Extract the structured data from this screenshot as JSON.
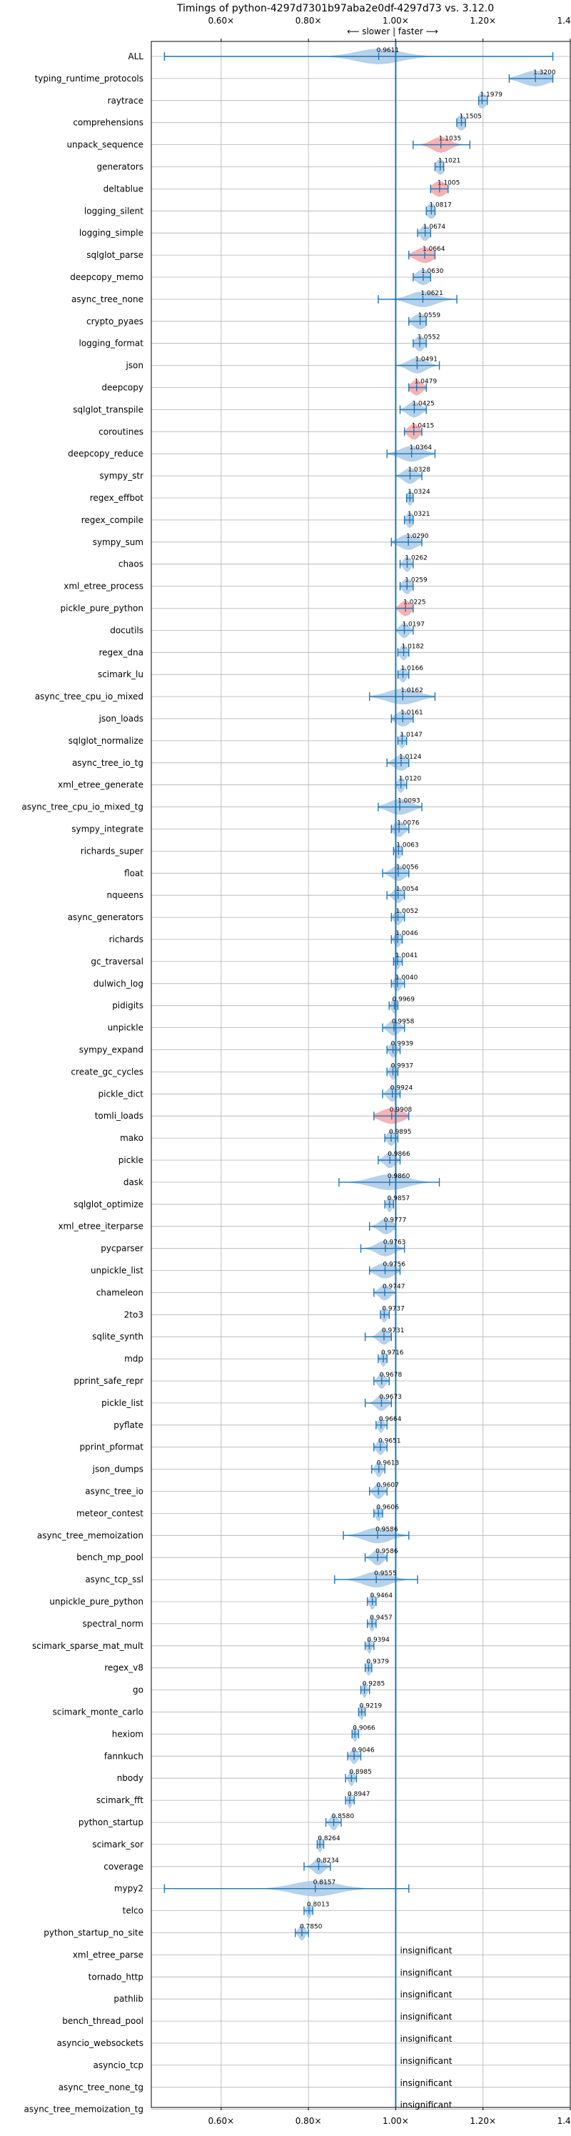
{
  "chart_data": {
    "type": "violin",
    "title": "Timings of python-4297d7301b97aba2e0df-4297d73 vs. 3.12.0",
    "subtitle": "⟵ slower | faster ⟶",
    "xlim": [
      0.44,
      1.4
    ],
    "xticks": [
      0.6,
      0.8,
      1.0,
      1.2,
      1.4
    ],
    "xtick_labels": [
      "0.60×",
      "0.80×",
      "1.00×",
      "1.20×",
      "1.40×"
    ],
    "reference_line": 1.0,
    "grid": true,
    "colors": {
      "violin": "#a9c9e6",
      "line": "#1f77b4",
      "highlight": "#f4a5a8",
      "ref": "#1f77b4",
      "grid": "#b0b0b0"
    },
    "rows": [
      {
        "name": "ALL",
        "value": 0.9611,
        "label": "0.9611",
        "min": 0.47,
        "max": 1.36,
        "spread": 0.05
      },
      {
        "name": "typing_runtime_protocols",
        "value": 1.32,
        "label": "1.3200",
        "min": 1.26,
        "max": 1.36,
        "spread": 0.03
      },
      {
        "name": "raytrace",
        "value": 1.1979,
        "label": "1.1979",
        "min": 1.19,
        "max": 1.21,
        "spread": 0.01
      },
      {
        "name": "comprehensions",
        "value": 1.1505,
        "label": "1.1505",
        "min": 1.14,
        "max": 1.16,
        "spread": 0.01
      },
      {
        "name": "unpack_sequence",
        "value": 1.1035,
        "label": "1.1035",
        "min": 1.04,
        "max": 1.17,
        "spread": 0.02,
        "highlight": true
      },
      {
        "name": "generators",
        "value": 1.1021,
        "label": "1.1021",
        "min": 1.09,
        "max": 1.11,
        "spread": 0.01
      },
      {
        "name": "deltablue",
        "value": 1.1005,
        "label": "1.1005",
        "min": 1.08,
        "max": 1.12,
        "spread": 0.015,
        "highlight": true
      },
      {
        "name": "logging_silent",
        "value": 1.0817,
        "label": "1.0817",
        "min": 1.07,
        "max": 1.09,
        "spread": 0.01
      },
      {
        "name": "logging_simple",
        "value": 1.0674,
        "label": "1.0674",
        "min": 1.05,
        "max": 1.08,
        "spread": 0.01
      },
      {
        "name": "sqlglot_parse",
        "value": 1.0664,
        "label": "1.0664",
        "min": 1.03,
        "max": 1.09,
        "spread": 0.02,
        "highlight": true
      },
      {
        "name": "deepcopy_memo",
        "value": 1.063,
        "label": "1.0630",
        "min": 1.04,
        "max": 1.08,
        "spread": 0.015
      },
      {
        "name": "async_tree_none",
        "value": 1.0621,
        "label": "1.0621",
        "min": 0.96,
        "max": 1.14,
        "spread": 0.03
      },
      {
        "name": "crypto_pyaes",
        "value": 1.0559,
        "label": "1.0559",
        "min": 1.03,
        "max": 1.07,
        "spread": 0.015
      },
      {
        "name": "logging_format",
        "value": 1.0552,
        "label": "1.0552",
        "min": 1.04,
        "max": 1.07,
        "spread": 0.01
      },
      {
        "name": "json",
        "value": 1.0491,
        "label": "1.0491",
        "min": 1.0,
        "max": 1.1,
        "spread": 0.02
      },
      {
        "name": "deepcopy",
        "value": 1.0479,
        "label": "1.0479",
        "min": 1.03,
        "max": 1.07,
        "spread": 0.012,
        "highlight": true
      },
      {
        "name": "sqlglot_transpile",
        "value": 1.0425,
        "label": "1.0425",
        "min": 1.01,
        "max": 1.07,
        "spread": 0.015
      },
      {
        "name": "coroutines",
        "value": 1.0415,
        "label": "1.0415",
        "min": 1.02,
        "max": 1.06,
        "spread": 0.012,
        "highlight": true
      },
      {
        "name": "deepcopy_reduce",
        "value": 1.0364,
        "label": "1.0364",
        "min": 0.98,
        "max": 1.09,
        "spread": 0.025
      },
      {
        "name": "sympy_str",
        "value": 1.0328,
        "label": "1.0328",
        "min": 1.0,
        "max": 1.06,
        "spread": 0.015
      },
      {
        "name": "regex_effbot",
        "value": 1.0324,
        "label": "1.0324",
        "min": 1.025,
        "max": 1.04,
        "spread": 0.006
      },
      {
        "name": "regex_compile",
        "value": 1.0321,
        "label": "1.0321",
        "min": 1.02,
        "max": 1.04,
        "spread": 0.008
      },
      {
        "name": "sympy_sum",
        "value": 1.029,
        "label": "1.0290",
        "min": 0.99,
        "max": 1.06,
        "spread": 0.02
      },
      {
        "name": "chaos",
        "value": 1.0262,
        "label": "1.0262",
        "min": 1.01,
        "max": 1.04,
        "spread": 0.008
      },
      {
        "name": "xml_etree_process",
        "value": 1.0259,
        "label": "1.0259",
        "min": 1.01,
        "max": 1.04,
        "spread": 0.01
      },
      {
        "name": "pickle_pure_python",
        "value": 1.0225,
        "label": "1.0225",
        "min": 1.0,
        "max": 1.04,
        "spread": 0.012,
        "highlight": true
      },
      {
        "name": "docutils",
        "value": 1.0197,
        "label": "1.0197",
        "min": 1.0,
        "max": 1.04,
        "spread": 0.01
      },
      {
        "name": "regex_dna",
        "value": 1.0182,
        "label": "1.0182",
        "min": 1.005,
        "max": 1.03,
        "spread": 0.008
      },
      {
        "name": "scimark_lu",
        "value": 1.0166,
        "label": "1.0166",
        "min": 1.005,
        "max": 1.03,
        "spread": 0.008
      },
      {
        "name": "async_tree_cpu_io_mixed",
        "value": 1.0162,
        "label": "1.0162",
        "min": 0.94,
        "max": 1.09,
        "spread": 0.035
      },
      {
        "name": "json_loads",
        "value": 1.0161,
        "label": "1.0161",
        "min": 0.99,
        "max": 1.04,
        "spread": 0.015
      },
      {
        "name": "sqlglot_normalize",
        "value": 1.0147,
        "label": "1.0147",
        "min": 1.005,
        "max": 1.025,
        "spread": 0.006
      },
      {
        "name": "async_tree_io_tg",
        "value": 1.0124,
        "label": "1.0124",
        "min": 0.98,
        "max": 1.03,
        "spread": 0.015
      },
      {
        "name": "xml_etree_generate",
        "value": 1.012,
        "label": "1.0120",
        "min": 1.0,
        "max": 1.025,
        "spread": 0.007
      },
      {
        "name": "async_tree_cpu_io_mixed_tg",
        "value": 1.0093,
        "label": "1.0093",
        "min": 0.96,
        "max": 1.06,
        "spread": 0.025
      },
      {
        "name": "sympy_integrate",
        "value": 1.0076,
        "label": "1.0076",
        "min": 0.99,
        "max": 1.03,
        "spread": 0.012
      },
      {
        "name": "richards_super",
        "value": 1.0063,
        "label": "1.0063",
        "min": 0.995,
        "max": 1.015,
        "spread": 0.006
      },
      {
        "name": "float",
        "value": 1.0056,
        "label": "1.0056",
        "min": 0.97,
        "max": 1.03,
        "spread": 0.015
      },
      {
        "name": "nqueens",
        "value": 1.0054,
        "label": "1.0054",
        "min": 0.98,
        "max": 1.02,
        "spread": 0.01
      },
      {
        "name": "async_generators",
        "value": 1.0052,
        "label": "1.0052",
        "min": 0.99,
        "max": 1.02,
        "spread": 0.008
      },
      {
        "name": "richards",
        "value": 1.0046,
        "label": "1.0046",
        "min": 0.99,
        "max": 1.015,
        "spread": 0.007
      },
      {
        "name": "gc_traversal",
        "value": 1.0041,
        "label": "1.0041",
        "min": 0.995,
        "max": 1.015,
        "spread": 0.006
      },
      {
        "name": "dulwich_log",
        "value": 1.004,
        "label": "1.0040",
        "min": 0.99,
        "max": 1.02,
        "spread": 0.008
      },
      {
        "name": "pidigits",
        "value": 0.9969,
        "label": "0.9969",
        "min": 0.985,
        "max": 1.005,
        "spread": 0.006
      },
      {
        "name": "unpickle",
        "value": 0.9958,
        "label": "0.9958",
        "min": 0.97,
        "max": 1.02,
        "spread": 0.012
      },
      {
        "name": "sympy_expand",
        "value": 0.9939,
        "label": "0.9939",
        "min": 0.98,
        "max": 1.01,
        "spread": 0.008
      },
      {
        "name": "create_gc_cycles",
        "value": 0.9937,
        "label": "0.9937",
        "min": 0.98,
        "max": 1.005,
        "spread": 0.007
      },
      {
        "name": "pickle_dict",
        "value": 0.9924,
        "label": "0.9924",
        "min": 0.97,
        "max": 1.01,
        "spread": 0.01
      },
      {
        "name": "tomli_loads",
        "value": 0.9908,
        "label": "0.9908",
        "min": 0.95,
        "max": 1.03,
        "spread": 0.025,
        "highlight": true
      },
      {
        "name": "mako",
        "value": 0.9895,
        "label": "0.9895",
        "min": 0.975,
        "max": 1.005,
        "spread": 0.008
      },
      {
        "name": "pickle",
        "value": 0.9866,
        "label": "0.9866",
        "min": 0.96,
        "max": 1.01,
        "spread": 0.012
      },
      {
        "name": "dask",
        "value": 0.986,
        "label": "0.9860",
        "min": 0.87,
        "max": 1.1,
        "spread": 0.04
      },
      {
        "name": "sqlglot_optimize",
        "value": 0.9857,
        "label": "0.9857",
        "min": 0.975,
        "max": 0.995,
        "spread": 0.006
      },
      {
        "name": "xml_etree_iterparse",
        "value": 0.9777,
        "label": "0.9777",
        "min": 0.94,
        "max": 1.0,
        "spread": 0.015
      },
      {
        "name": "pycparser",
        "value": 0.9763,
        "label": "0.9763",
        "min": 0.92,
        "max": 1.02,
        "spread": 0.02
      },
      {
        "name": "unpickle_list",
        "value": 0.9756,
        "label": "0.9756",
        "min": 0.94,
        "max": 1.01,
        "spread": 0.02
      },
      {
        "name": "chameleon",
        "value": 0.9747,
        "label": "0.9747",
        "min": 0.95,
        "max": 1.0,
        "spread": 0.012
      },
      {
        "name": "2to3",
        "value": 0.9737,
        "label": "0.9737",
        "min": 0.965,
        "max": 0.985,
        "spread": 0.006
      },
      {
        "name": "sqlite_synth",
        "value": 0.9731,
        "label": "0.9731",
        "min": 0.93,
        "max": 0.99,
        "spread": 0.012
      },
      {
        "name": "mdp",
        "value": 0.9716,
        "label": "0.9716",
        "min": 0.96,
        "max": 0.98,
        "spread": 0.006
      },
      {
        "name": "pprint_safe_repr",
        "value": 0.9678,
        "label": "0.9678",
        "min": 0.95,
        "max": 0.985,
        "spread": 0.008
      },
      {
        "name": "pickle_list",
        "value": 0.9673,
        "label": "0.9673",
        "min": 0.93,
        "max": 0.99,
        "spread": 0.012
      },
      {
        "name": "pyflate",
        "value": 0.9664,
        "label": "0.9664",
        "min": 0.955,
        "max": 0.98,
        "spread": 0.006
      },
      {
        "name": "pprint_pformat",
        "value": 0.9651,
        "label": "0.9651",
        "min": 0.95,
        "max": 0.98,
        "spread": 0.008
      },
      {
        "name": "json_dumps",
        "value": 0.9613,
        "label": "0.9613",
        "min": 0.945,
        "max": 0.975,
        "spread": 0.007
      },
      {
        "name": "async_tree_io",
        "value": 0.9607,
        "label": "0.9607",
        "min": 0.94,
        "max": 0.98,
        "spread": 0.01
      },
      {
        "name": "meteor_contest",
        "value": 0.9606,
        "label": "0.9606",
        "min": 0.95,
        "max": 0.97,
        "spread": 0.006
      },
      {
        "name": "async_tree_memoization",
        "value": 0.9586,
        "label": "0.9586",
        "min": 0.88,
        "max": 1.03,
        "spread": 0.03
      },
      {
        "name": "bench_mp_pool",
        "value": 0.9586,
        "label": "0.9586",
        "min": 0.93,
        "max": 0.98,
        "spread": 0.012
      },
      {
        "name": "async_tcp_ssl",
        "value": 0.9555,
        "label": "0.9555",
        "min": 0.86,
        "max": 1.05,
        "spread": 0.03
      },
      {
        "name": "unpickle_pure_python",
        "value": 0.9464,
        "label": "0.9464",
        "min": 0.935,
        "max": 0.955,
        "spread": 0.006
      },
      {
        "name": "spectral_norm",
        "value": 0.9457,
        "label": "0.9457",
        "min": 0.935,
        "max": 0.955,
        "spread": 0.005
      },
      {
        "name": "scimark_sparse_mat_mult",
        "value": 0.9394,
        "label": "0.9394",
        "min": 0.93,
        "max": 0.95,
        "spread": 0.005
      },
      {
        "name": "regex_v8",
        "value": 0.9379,
        "label": "0.9379",
        "min": 0.93,
        "max": 0.945,
        "spread": 0.005
      },
      {
        "name": "go",
        "value": 0.9285,
        "label": "0.9285",
        "min": 0.92,
        "max": 0.94,
        "spread": 0.005
      },
      {
        "name": "scimark_monte_carlo",
        "value": 0.9219,
        "label": "0.9219",
        "min": 0.915,
        "max": 0.93,
        "spread": 0.005
      },
      {
        "name": "hexiom",
        "value": 0.9066,
        "label": "0.9066",
        "min": 0.9,
        "max": 0.915,
        "spread": 0.005
      },
      {
        "name": "fannkuch",
        "value": 0.9046,
        "label": "0.9046",
        "min": 0.89,
        "max": 0.92,
        "spread": 0.008
      },
      {
        "name": "nbody",
        "value": 0.8985,
        "label": "0.8985",
        "min": 0.885,
        "max": 0.91,
        "spread": 0.006
      },
      {
        "name": "scimark_fft",
        "value": 0.8947,
        "label": "0.8947",
        "min": 0.885,
        "max": 0.905,
        "spread": 0.005
      },
      {
        "name": "python_startup",
        "value": 0.858,
        "label": "0.8580",
        "min": 0.84,
        "max": 0.875,
        "spread": 0.008
      },
      {
        "name": "scimark_sor",
        "value": 0.8264,
        "label": "0.8264",
        "min": 0.82,
        "max": 0.835,
        "spread": 0.005
      },
      {
        "name": "coverage",
        "value": 0.8234,
        "label": "0.8234",
        "min": 0.79,
        "max": 0.85,
        "spread": 0.012
      },
      {
        "name": "mypy2",
        "value": 0.8157,
        "label": "0.8157",
        "min": 0.47,
        "max": 1.03,
        "spread": 0.05
      },
      {
        "name": "telco",
        "value": 0.8013,
        "label": "0.8013",
        "min": 0.79,
        "max": 0.81,
        "spread": 0.005
      },
      {
        "name": "python_startup_no_site",
        "value": 0.785,
        "label": "0.7850",
        "min": 0.77,
        "max": 0.8,
        "spread": 0.007
      },
      {
        "name": "xml_etree_parse",
        "insignificant": true,
        "label": "insignificant"
      },
      {
        "name": "tornado_http",
        "insignificant": true,
        "label": "insignificant"
      },
      {
        "name": "pathlib",
        "insignificant": true,
        "label": "insignificant"
      },
      {
        "name": "bench_thread_pool",
        "insignificant": true,
        "label": "insignificant"
      },
      {
        "name": "asyncio_websockets",
        "insignificant": true,
        "label": "insignificant"
      },
      {
        "name": "asyncio_tcp",
        "insignificant": true,
        "label": "insignificant"
      },
      {
        "name": "async_tree_none_tg",
        "insignificant": true,
        "label": "insignificant"
      },
      {
        "name": "async_tree_memoization_tg",
        "insignificant": true,
        "label": "insignificant"
      }
    ]
  }
}
